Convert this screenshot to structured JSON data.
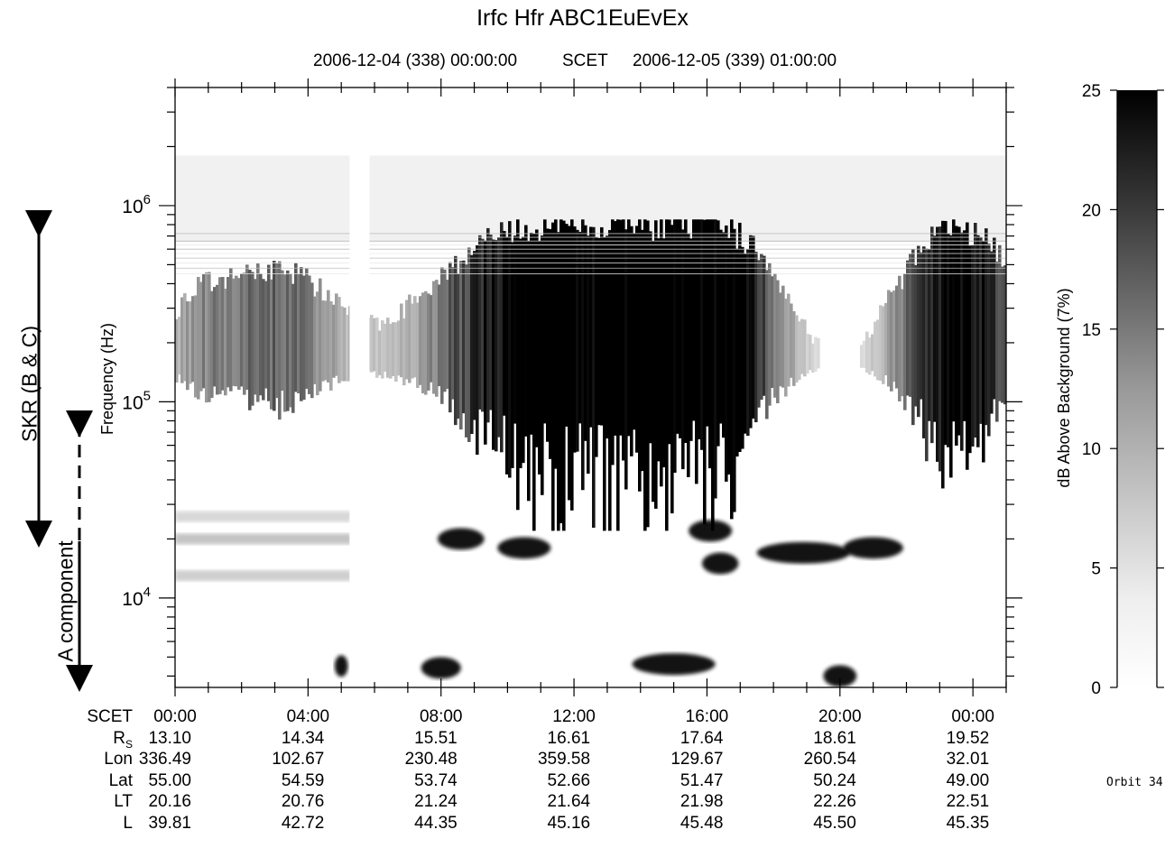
{
  "chart_data": {
    "type": "heatmap",
    "title": "Irfc Hfr ABC1EuEvEx",
    "subtitle": {
      "start": "2006-12-04 (338) 00:00:00",
      "mid": "SCET",
      "end": "2006-12-05 (339) 01:00:00"
    },
    "ylabel": "Frequency (Hz)",
    "yscale": "log",
    "ylim": [
      3500,
      4000000
    ],
    "yticks": [
      {
        "value": 1000000,
        "base": "10",
        "exp": "6"
      },
      {
        "value": 100000,
        "base": "10",
        "exp": "5"
      },
      {
        "value": 10000,
        "base": "10",
        "exp": "4"
      }
    ],
    "xlim_hours": [
      0,
      25
    ],
    "xtick_hours": [
      0,
      4,
      8,
      12,
      16,
      20,
      24
    ],
    "colorbar": {
      "label": "dB Above Background (7%)",
      "range": [
        0,
        25
      ],
      "ticks": [
        0,
        5,
        10,
        15,
        20,
        25
      ],
      "low_color": "#ffffff",
      "high_color": "#000000"
    },
    "data_gap_hours": [
      5.25,
      5.85
    ],
    "ephemeris": {
      "header": "SCET",
      "times": [
        "00:00",
        "04:00",
        "08:00",
        "12:00",
        "16:00",
        "20:00",
        "00:00"
      ],
      "rows": [
        {
          "label": "R",
          "sub": "S",
          "values": [
            "13.10",
            "14.34",
            "15.51",
            "16.61",
            "17.64",
            "18.61",
            "19.52"
          ]
        },
        {
          "label": "Lon",
          "sub": "",
          "values": [
            "336.49",
            "102.67",
            "230.48",
            "359.58",
            "129.67",
            "260.54",
            "32.01"
          ]
        },
        {
          "label": "Lat",
          "sub": "",
          "values": [
            "55.00",
            "54.59",
            "53.74",
            "52.66",
            "51.47",
            "50.24",
            "49.00"
          ]
        },
        {
          "label": "LT",
          "sub": "",
          "values": [
            "20.16",
            "20.76",
            "21.24",
            "21.64",
            "21.98",
            "22.26",
            "22.51"
          ]
        },
        {
          "label": "L",
          "sub": "",
          "values": [
            "39.81",
            "42.72",
            "44.35",
            "45.16",
            "45.48",
            "45.50",
            "45.35"
          ]
        }
      ]
    },
    "annotations": {
      "skr": "SKR (B & C)",
      "a_component": "A component"
    },
    "orbit": "Orbit 34"
  }
}
